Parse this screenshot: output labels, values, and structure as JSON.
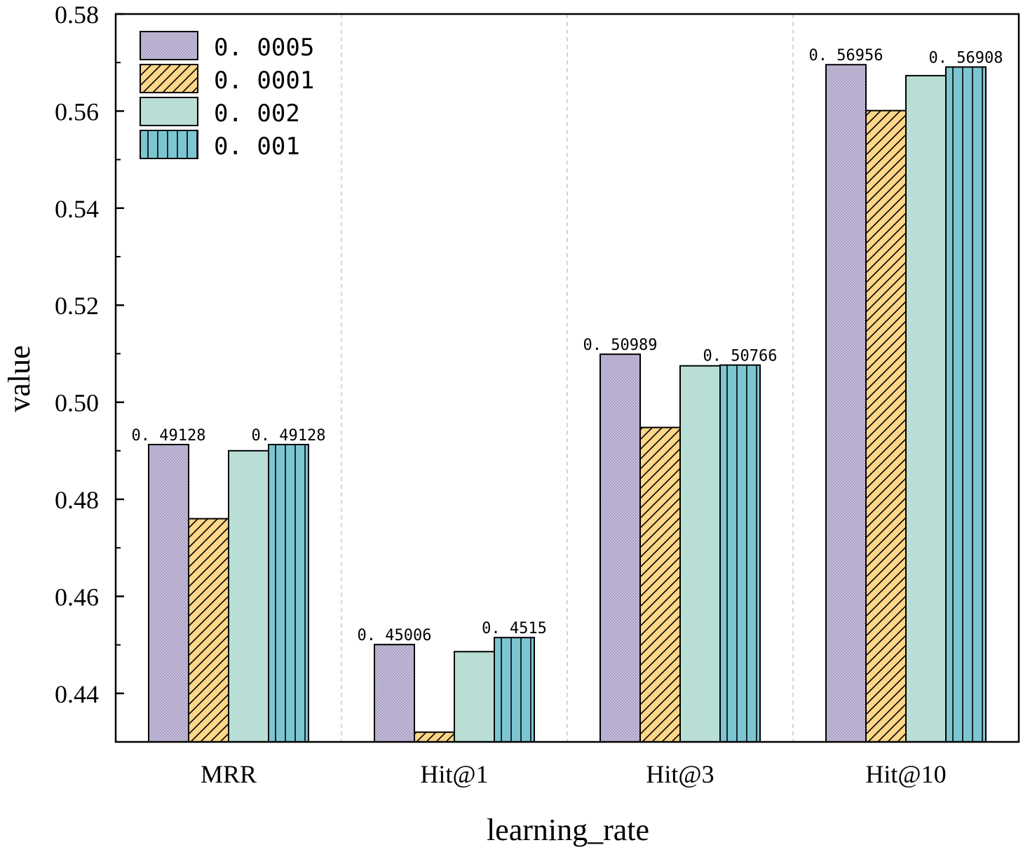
{
  "chart_data": {
    "type": "bar",
    "title": "",
    "xlabel": "learning_rate",
    "ylabel": "value",
    "categories": [
      "MRR",
      "Hit@1",
      "Hit@3",
      "Hit@10"
    ],
    "ylim": [
      0.43,
      0.58
    ],
    "yticks": [
      0.44,
      0.46,
      0.48,
      0.5,
      0.52,
      0.54,
      0.56,
      0.58
    ],
    "ytick_labels": [
      "0.44",
      "0.46",
      "0.48",
      "0.50",
      "0.52",
      "0.54",
      "0.56",
      "0.58"
    ],
    "grid": "vertical dashed separators between categories",
    "legend_position": "top-left",
    "series": [
      {
        "name": "0. 0005",
        "pattern": "dots",
        "color": "#c9bedd",
        "values": [
          0.49128,
          0.45006,
          0.50989,
          0.56956
        ]
      },
      {
        "name": "0. 0001",
        "pattern": "diagonal",
        "color": "#fdd687",
        "values": [
          0.476,
          0.432,
          0.4948,
          0.5601
        ]
      },
      {
        "name": "0. 002",
        "pattern": "solid",
        "color": "#b9ded5",
        "values": [
          0.49,
          0.4486,
          0.5075,
          0.5673
        ]
      },
      {
        "name": "0. 001",
        "pattern": "vertical",
        "color": "#7cc6d2",
        "values": [
          0.49128,
          0.4515,
          0.50766,
          0.56908
        ]
      }
    ],
    "data_labels": [
      {
        "category": "MRR",
        "series": "0. 0005",
        "text": "0. 49128"
      },
      {
        "category": "MRR",
        "series": "0. 001",
        "text": "0. 49128"
      },
      {
        "category": "Hit@1",
        "series": "0. 0005",
        "text": "0. 45006"
      },
      {
        "category": "Hit@1",
        "series": "0. 001",
        "text": "0. 4515"
      },
      {
        "category": "Hit@3",
        "series": "0. 0005",
        "text": "0. 50989"
      },
      {
        "category": "Hit@3",
        "series": "0. 001",
        "text": "0. 50766"
      },
      {
        "category": "Hit@10",
        "series": "0. 0005",
        "text": "0. 56956"
      },
      {
        "category": "Hit@10",
        "series": "0. 001",
        "text": "0. 56908"
      }
    ]
  }
}
